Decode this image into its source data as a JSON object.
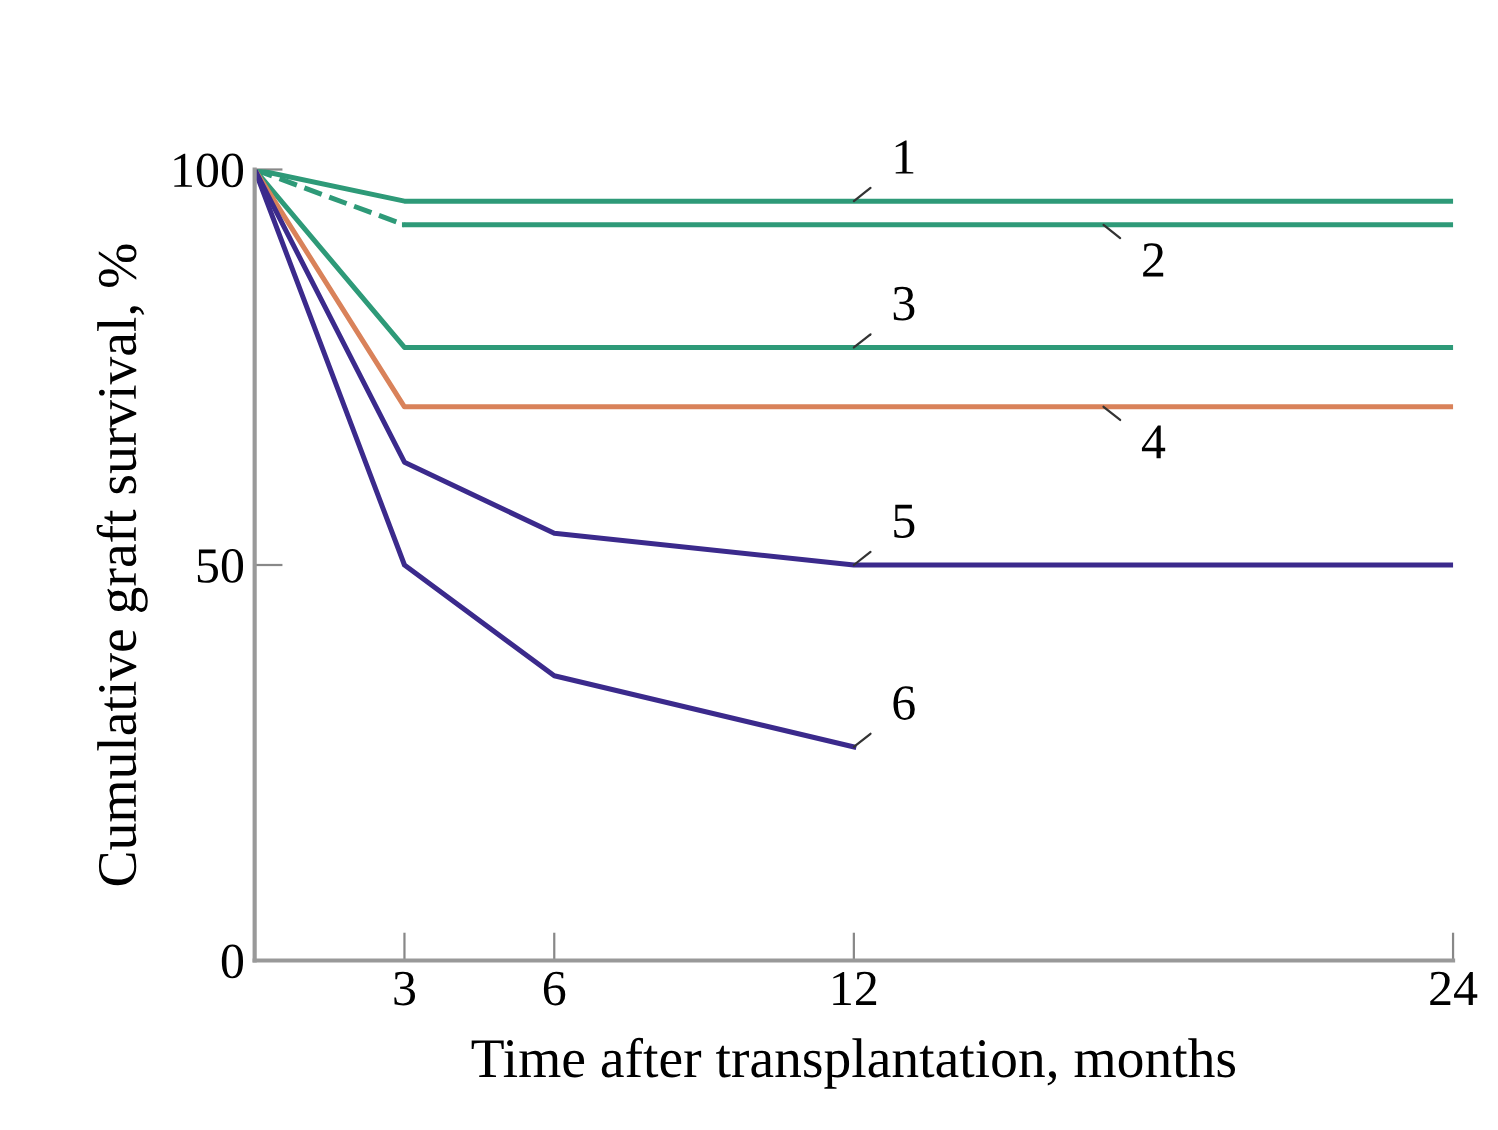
{
  "chart_data": {
    "type": "line",
    "xlabel": "Time after transplantation, months",
    "ylabel": "Cumulative graft survival, %",
    "xlim": [
      0,
      24
    ],
    "xticks": [
      3,
      6,
      12,
      24
    ],
    "ylim": [
      0,
      100
    ],
    "yticks": [
      0,
      50,
      100
    ],
    "grid": false,
    "legend": false,
    "marker": "none",
    "series": [
      {
        "name": "1",
        "color": "#2e9a78",
        "x": [
          0,
          3,
          24
        ],
        "values": [
          100,
          96,
          96
        ],
        "line_style": "solid"
      },
      {
        "name": "2",
        "color": "#2e9a78",
        "x": [
          3,
          24
        ],
        "values": [
          93,
          93
        ],
        "line_style": "solid"
      },
      {
        "color": "#2e9a78",
        "x": [
          0,
          3
        ],
        "values": [
          100,
          93
        ],
        "line_style": "dashed"
      },
      {
        "name": "3",
        "color": "#2e9a78",
        "x": [
          0,
          3,
          24
        ],
        "values": [
          100,
          77.5,
          77.5
        ],
        "line_style": "solid"
      },
      {
        "name": "4",
        "color": "#d9825a",
        "x": [
          0,
          3,
          24
        ],
        "values": [
          100,
          70,
          70
        ],
        "line_style": "solid"
      },
      {
        "name": "5",
        "color": "#3b2a8c",
        "x": [
          0,
          3,
          6,
          12,
          24
        ],
        "values": [
          100,
          63,
          54,
          50,
          50
        ],
        "line_style": "solid"
      },
      {
        "name": "6",
        "color": "#3b2a8c",
        "x": [
          0,
          3,
          6,
          12
        ],
        "values": [
          100,
          50,
          36,
          27
        ],
        "line_style": "solid"
      }
    ]
  }
}
